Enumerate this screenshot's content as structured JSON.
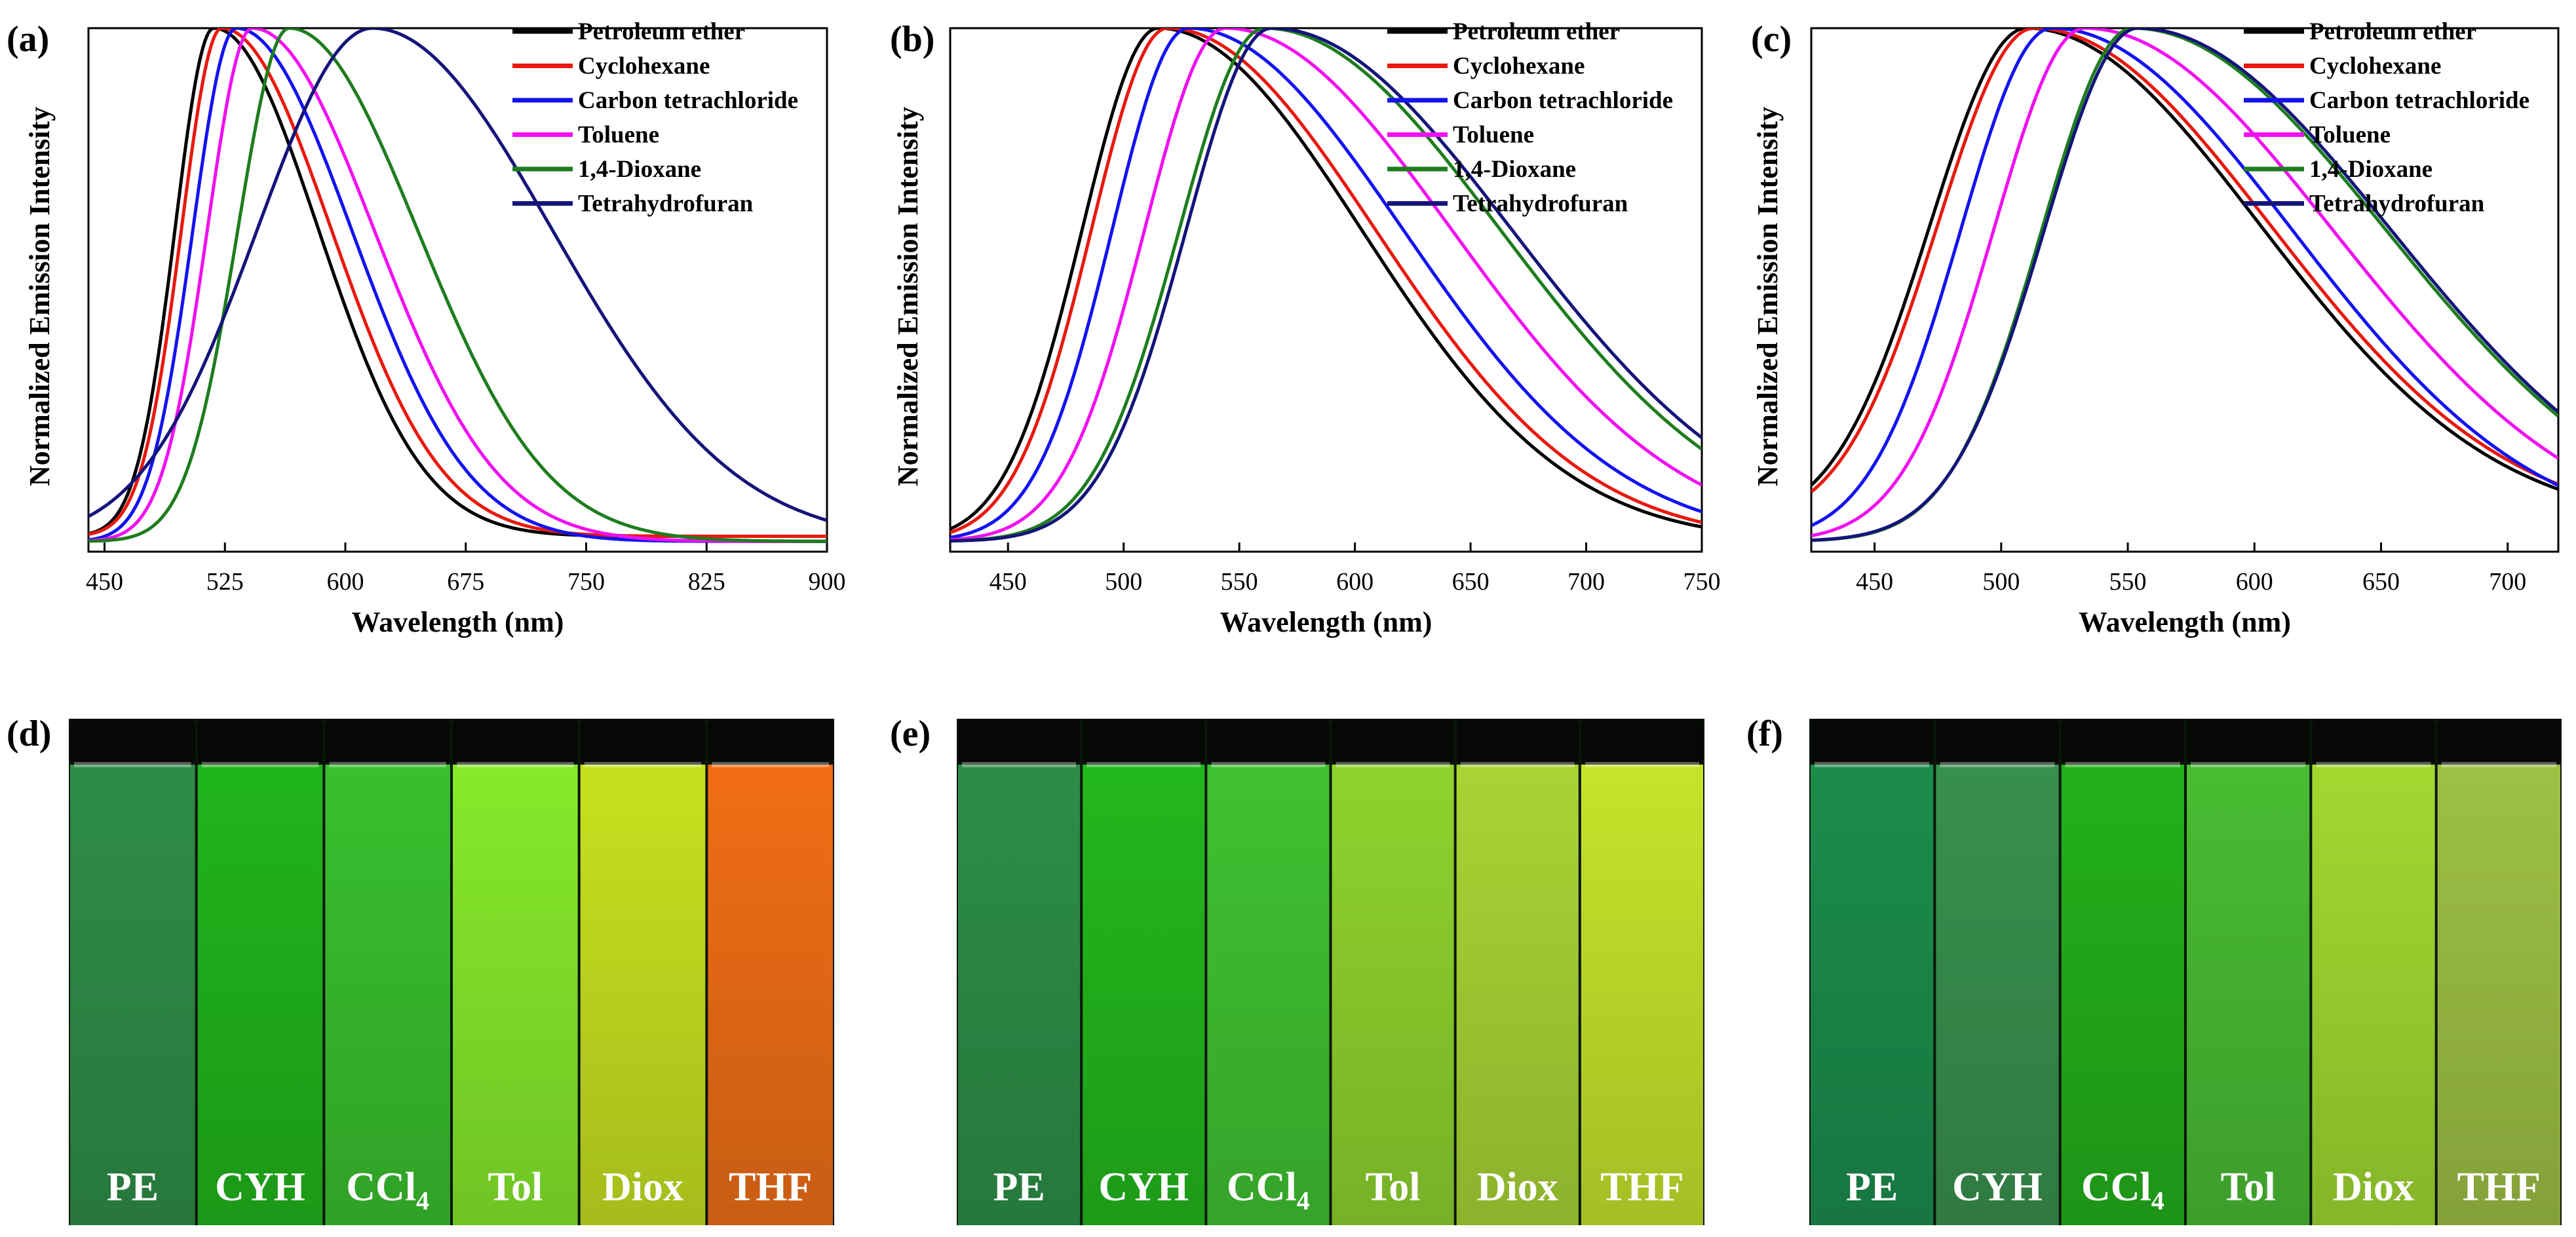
{
  "colors": {
    "Petroleum ether": "#000000",
    "Cyclohexane": "#e8190f",
    "Carbon tetrachloride": "#1313f0",
    "Toluene": "#f010f0",
    "1,4-Dioxane": "#1e7d1e",
    "Tetrahydrofuran": "#14147a"
  },
  "chart_data": [
    {
      "panel": "(a)",
      "type": "line",
      "title": "",
      "xlabel": "Wavelength (nm)",
      "ylabel": "Normalized Emission Intensity",
      "xlim": [
        440,
        900
      ],
      "ylim": [
        -0.02,
        1.0
      ],
      "xticks": [
        450,
        525,
        600,
        675,
        750,
        825,
        900
      ],
      "legend_position": "top-right",
      "grid": false,
      "series": [
        {
          "name": "Petroleum ether",
          "peak": 518,
          "wl": 24,
          "wr": 65,
          "base": 0.01
        },
        {
          "name": "Cyclohexane",
          "peak": 523,
          "wl": 25,
          "wr": 68,
          "base": 0.01
        },
        {
          "name": "Carbon tetrachloride",
          "peak": 532,
          "wl": 27,
          "wr": 72,
          "base": 0.0
        },
        {
          "name": "Toluene",
          "peak": 542,
          "wl": 28,
          "wr": 76,
          "base": 0.0
        },
        {
          "name": "1,4-Dioxane",
          "peak": 565,
          "wl": 32,
          "wr": 80,
          "base": 0.0
        },
        {
          "name": "Tetrahydrofuran",
          "peak": 617,
          "wl": 72,
          "wr": 112,
          "base": 0.0
        }
      ]
    },
    {
      "panel": "(b)",
      "type": "line",
      "title": "",
      "xlabel": "Wavelength (nm)",
      "ylabel": "Normalized Emission Intensity",
      "xlim": [
        425,
        750
      ],
      "ylim": [
        -0.02,
        1.0
      ],
      "xticks": [
        450,
        500,
        550,
        600,
        650,
        700,
        750
      ],
      "legend_position": "top-right",
      "grid": false,
      "series": [
        {
          "name": "Petroleum ether",
          "peak": 515,
          "wl": 33,
          "wr": 88,
          "base": 0.0
        },
        {
          "name": "Cyclohexane",
          "peak": 519,
          "wl": 33,
          "wr": 90,
          "base": 0.0
        },
        {
          "name": "Carbon tetrachloride",
          "peak": 528,
          "wl": 33,
          "wr": 93,
          "base": 0.0
        },
        {
          "name": "Toluene",
          "peak": 544,
          "wl": 35,
          "wr": 98,
          "base": 0.0
        },
        {
          "name": "1,4-Dioxane",
          "peak": 561,
          "wl": 37,
          "wr": 102,
          "base": 0.0
        },
        {
          "name": "Tetrahydrofuran",
          "peak": 564,
          "wl": 37,
          "wr": 104,
          "base": 0.0
        }
      ]
    },
    {
      "panel": "(c)",
      "type": "line",
      "title": "",
      "xlabel": "Wavelength (nm)",
      "ylabel": "Normalized Emission Intensity",
      "xlim": [
        425,
        720
      ],
      "ylim": [
        -0.02,
        1.0
      ],
      "xticks": [
        450,
        500,
        550,
        600,
        650,
        700
      ],
      "legend_position": "top-right",
      "grid": false,
      "series": [
        {
          "name": "Petroleum ether",
          "peak": 510,
          "wl": 38,
          "wr": 92,
          "base": 0.03
        },
        {
          "name": "Cyclohexane",
          "peak": 513,
          "wl": 38,
          "wr": 93,
          "base": 0.03
        },
        {
          "name": "Carbon tetrachloride",
          "peak": 520,
          "wl": 36,
          "wr": 95,
          "base": 0.0
        },
        {
          "name": "Toluene",
          "peak": 533,
          "wl": 36,
          "wr": 98,
          "base": 0.0
        },
        {
          "name": "1,4-Dioxane",
          "peak": 552,
          "wl": 36,
          "wr": 100,
          "base": 0.0
        },
        {
          "name": "Tetrahydrofuran",
          "peak": 554,
          "wl": 37,
          "wr": 100,
          "base": 0.0
        }
      ]
    }
  ],
  "photos": [
    {
      "panel": "(d)",
      "vials": [
        {
          "label": "PE",
          "color": "#2e8d47"
        },
        {
          "label": "CYH",
          "color": "#20b51b"
        },
        {
          "label": "CCl",
          "sub": "4",
          "color": "#38c02e"
        },
        {
          "label": "Tol",
          "color": "#86ea2a"
        },
        {
          "label": "Diox",
          "color": "#c7e11f"
        },
        {
          "label": "THF",
          "color": "#f16d15"
        }
      ]
    },
    {
      "panel": "(e)",
      "vials": [
        {
          "label": "PE",
          "color": "#2c8e46"
        },
        {
          "label": "CYH",
          "color": "#22b81c"
        },
        {
          "label": "CCl",
          "sub": "4",
          "color": "#3fc231"
        },
        {
          "label": "Tol",
          "color": "#8fd32d"
        },
        {
          "label": "Diox",
          "color": "#a9d434"
        },
        {
          "label": "THF",
          "color": "#c7e32a"
        }
      ]
    },
    {
      "panel": "(f)",
      "vials": [
        {
          "label": "PE",
          "color": "#1b8c4c"
        },
        {
          "label": "CYH",
          "color": "#38904d"
        },
        {
          "label": "CCl",
          "sub": "4",
          "color": "#22b01a"
        },
        {
          "label": "Tol",
          "color": "#49bc33"
        },
        {
          "label": "Diox",
          "color": "#a1d930"
        },
        {
          "label": "THF",
          "color": "#9ec044"
        }
      ]
    }
  ]
}
